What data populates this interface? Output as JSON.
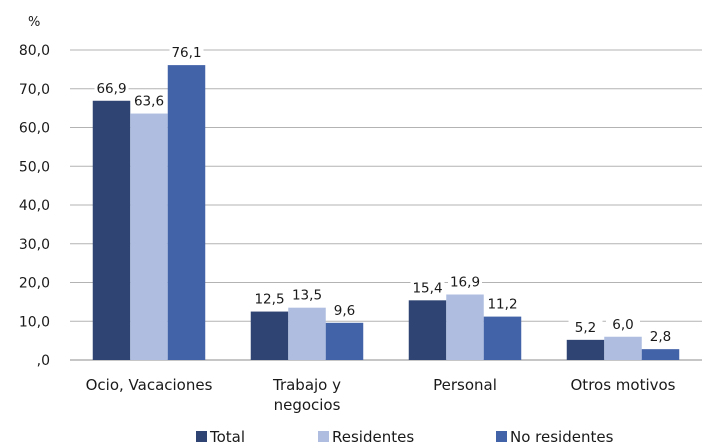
{
  "chart_data": {
    "type": "bar",
    "unit_label": "%",
    "categories": [
      [
        "Ocio, Vacaciones"
      ],
      [
        "Trabajo y",
        "negocios"
      ],
      [
        "Personal"
      ],
      [
        "Otros motivos"
      ]
    ],
    "series": [
      {
        "name": "Total",
        "color": "#2f4472",
        "values": [
          66.9,
          12.5,
          15.4,
          5.2
        ],
        "labels": [
          "66,9",
          "12,5",
          "15,4",
          "5,2"
        ]
      },
      {
        "name": "Residentes",
        "color": "#aebde0",
        "values": [
          63.6,
          13.5,
          16.9,
          6.0
        ],
        "labels": [
          "63,6",
          "13,5",
          "16,9",
          "6,0"
        ]
      },
      {
        "name": "No residentes",
        "color": "#4363a8",
        "values": [
          76.1,
          9.6,
          11.2,
          2.8
        ],
        "labels": [
          "76,1",
          "9,6",
          "11,2",
          "2,8"
        ]
      }
    ],
    "ylim": [
      0,
      80
    ],
    "yticks": [
      0,
      10,
      20,
      30,
      40,
      50,
      60,
      70,
      80
    ],
    "ytick_labels": [
      ",0",
      "10,0",
      "20,0",
      "30,0",
      "40,0",
      "50,0",
      "60,0",
      "70,0",
      "80,0"
    ],
    "grid": true,
    "legend_position": "bottom"
  }
}
